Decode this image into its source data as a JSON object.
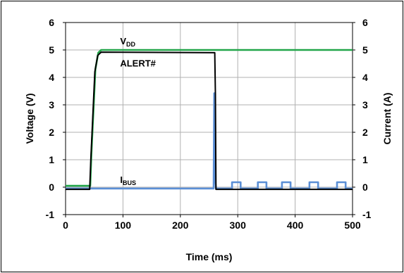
{
  "chart_data": {
    "type": "line",
    "xlabel": "Time (ms)",
    "ylabel": "Voltage (V)",
    "y2label": "Current (A)",
    "xlim": [
      0,
      500
    ],
    "ylim": [
      -1,
      6
    ],
    "y2lim": [
      -1,
      6
    ],
    "x_ticks": [
      "0",
      "100",
      "200",
      "300",
      "400",
      "500"
    ],
    "y_ticks": [
      "-1",
      "0",
      "1",
      "2",
      "3",
      "4",
      "5",
      "6"
    ],
    "y2_ticks": [
      "-1",
      "0",
      "1",
      "2",
      "3",
      "4",
      "5",
      "6"
    ],
    "grid": true,
    "colors": {
      "vdd": "#22a64a",
      "alert": "#000000",
      "ibus": "#5b8fd6",
      "grid": "#b0b0b0"
    },
    "annotations": [
      {
        "text_main": "V",
        "text_sub": "DD",
        "x": 95,
        "y": 5.2
      },
      {
        "text_main": "ALERT#",
        "text_sub": "",
        "x": 95,
        "y": 4.4
      },
      {
        "text_main": "I",
        "text_sub": "BUS",
        "x": 95,
        "y": 0.15
      }
    ],
    "series": [
      {
        "key": "vdd",
        "axis": "left",
        "x": [
          0,
          43,
          45,
          52,
          57,
          62,
          500
        ],
        "y": [
          0.05,
          0.05,
          1.2,
          4.3,
          4.9,
          5.0,
          5.0
        ]
      },
      {
        "key": "alert",
        "axis": "left",
        "x": [
          0,
          42,
          44,
          51,
          56,
          62,
          260,
          261,
          262,
          500
        ],
        "y": [
          -0.08,
          -0.08,
          1.0,
          4.2,
          4.8,
          4.92,
          4.9,
          3.4,
          -0.08,
          -0.08
        ]
      },
      {
        "key": "ibus",
        "axis": "right",
        "x": [
          0,
          258,
          259,
          260,
          261,
          262,
          290,
          290,
          305,
          305,
          335,
          335,
          350,
          350,
          377,
          377,
          392,
          392,
          425,
          425,
          440,
          440,
          473,
          473,
          488,
          488,
          500
        ],
        "y": [
          -0.05,
          -0.05,
          3.42,
          3.42,
          0.2,
          -0.05,
          -0.05,
          0.18,
          0.18,
          -0.05,
          -0.05,
          0.18,
          0.18,
          -0.05,
          -0.05,
          0.18,
          0.18,
          -0.05,
          -0.05,
          0.18,
          0.18,
          -0.05,
          -0.05,
          0.18,
          0.18,
          -0.05,
          -0.05
        ]
      }
    ]
  }
}
